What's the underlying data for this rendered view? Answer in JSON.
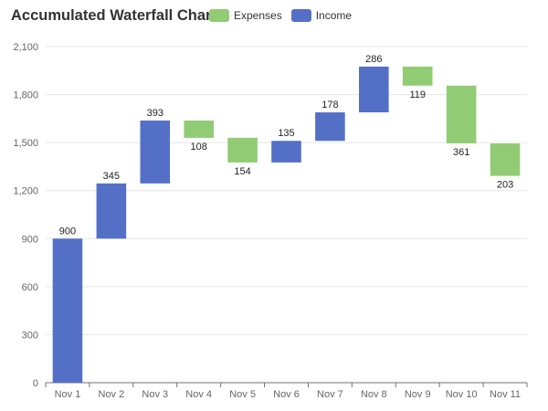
{
  "chart_data": {
    "type": "bar",
    "subtype": "waterfall",
    "title": "Accumulated Waterfall Chart",
    "legend": [
      {
        "name": "Expenses",
        "color": "#91cc75"
      },
      {
        "name": "Income",
        "color": "#5470c6"
      }
    ],
    "legend_position": "top",
    "categories": [
      "Nov 1",
      "Nov 2",
      "Nov 3",
      "Nov 4",
      "Nov 5",
      "Nov 6",
      "Nov 7",
      "Nov 8",
      "Nov 9",
      "Nov 10",
      "Nov 11"
    ],
    "series": [
      {
        "name": "Income",
        "values": [
          900,
          345,
          393,
          null,
          null,
          135,
          178,
          286,
          null,
          null,
          null
        ]
      },
      {
        "name": "Expenses",
        "values": [
          null,
          null,
          null,
          108,
          154,
          null,
          null,
          null,
          119,
          361,
          203
        ]
      }
    ],
    "ylim": [
      0,
      2100
    ],
    "yticks": [
      0,
      300,
      600,
      900,
      1200,
      1500,
      1800,
      2100
    ],
    "ytick_labels": [
      "0",
      "300",
      "600",
      "900",
      "1,200",
      "1,500",
      "1,800",
      "2,100"
    ],
    "grid": true
  }
}
